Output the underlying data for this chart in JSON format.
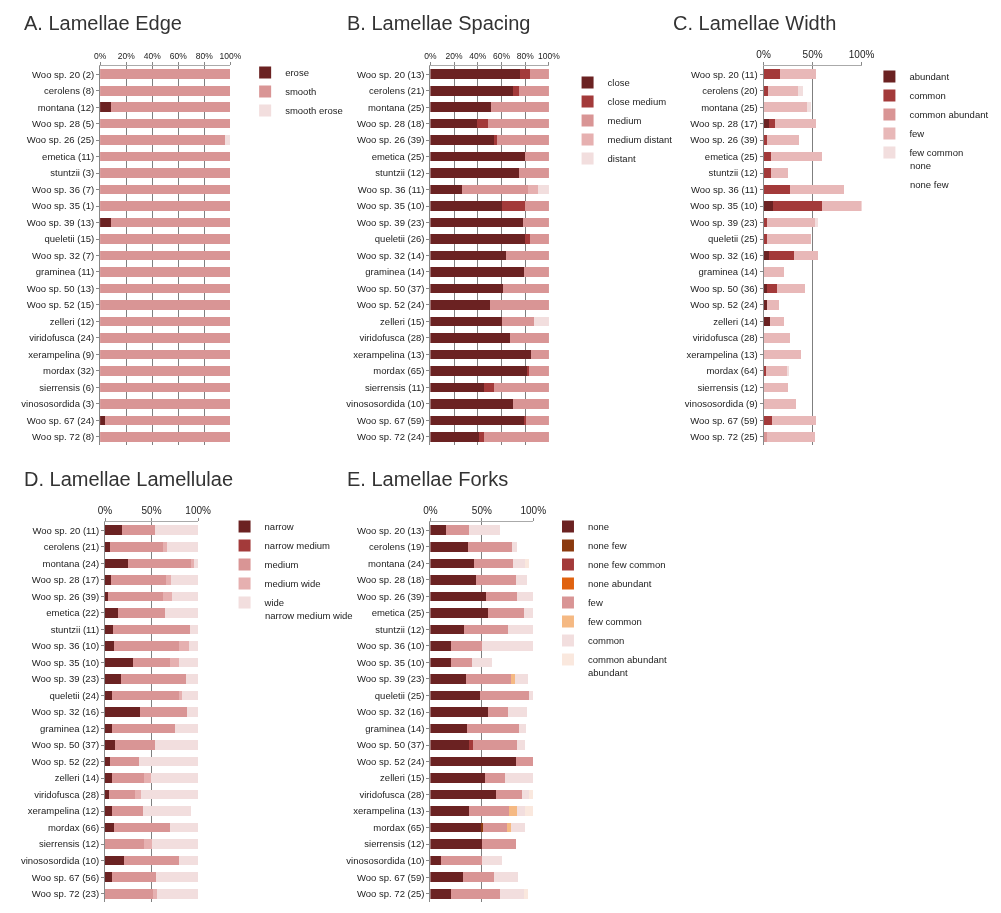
{
  "chart_data": [
    {
      "type": "bar",
      "orientation": "horizontal",
      "stacked": true,
      "title": "A. Lamellae Edge",
      "grid": "x",
      "legend": "right",
      "categories": [
        "Woo sp. 20 (2)",
        "cerolens (8)",
        "montana (12)",
        "Woo sp. 28 (5)",
        "Woo sp. 26 (25)",
        "emetica (11)",
        "stuntzii (3)",
        "Woo sp. 36 (7)",
        "Woo sp. 35 (1)",
        "Woo sp. 39 (13)",
        "queletii (15)",
        "Woo sp. 32 (7)",
        "graminea (11)",
        "Woo sp. 50 (13)",
        "Woo sp. 52 (15)",
        "zelleri (12)",
        "viridofusca (24)",
        "xerampelina (9)",
        "mordax (32)",
        "sierrensis (6)",
        "vinososordida (3)",
        "Woo sp. 67 (24)",
        "Woo sp. 72 (8)"
      ],
      "xlim": [
        0,
        100
      ],
      "xticks": [
        {
          "value": 0,
          "label": "0%"
        },
        {
          "value": 20,
          "label": "20%"
        },
        {
          "value": 40,
          "label": "40%"
        },
        {
          "value": 60,
          "label": "60%"
        },
        {
          "value": 80,
          "label": "80%"
        },
        {
          "value": 100,
          "label": "100%"
        }
      ],
      "series": [
        {
          "name": "erose",
          "color": "#6b2222",
          "values": [
            0,
            0,
            8,
            0,
            0,
            0,
            0,
            0,
            0,
            8,
            0,
            0,
            0,
            0,
            0,
            0,
            0,
            0,
            0,
            0,
            0,
            4,
            0
          ]
        },
        {
          "name": "smooth",
          "color": "#d99595",
          "values": [
            100,
            100,
            92,
            100,
            96,
            100,
            100,
            100,
            100,
            92,
            100,
            100,
            100,
            100,
            100,
            100,
            100,
            100,
            100,
            100,
            100,
            96,
            100
          ]
        },
        {
          "name": "smooth erose",
          "color": "#f2dede",
          "values": [
            0,
            0,
            0,
            0,
            4,
            0,
            0,
            0,
            0,
            0,
            0,
            0,
            0,
            0,
            0,
            0,
            0,
            0,
            0,
            0,
            0,
            0,
            0
          ]
        }
      ]
    },
    {
      "type": "bar",
      "orientation": "horizontal",
      "stacked": true,
      "title": "B. Lamellae Spacing",
      "grid": "x",
      "legend": "right",
      "categories": [
        "Woo sp. 20 (13)",
        "cerolens (21)",
        "montana (25)",
        "Woo sp. 28 (18)",
        "Woo sp. 26 (39)",
        "emetica (25)",
        "stuntzii (12)",
        "Woo sp. 36 (11)",
        "Woo sp. 35 (10)",
        "Woo sp. 39 (23)",
        "queletii (26)",
        "Woo sp. 32 (14)",
        "graminea (14)",
        "Woo sp. 50 (37)",
        "Woo sp. 52 (24)",
        "zelleri (15)",
        "viridofusca (28)",
        "xerampelina (13)",
        "mordax (65)",
        "sierrensis (11)",
        "vinososordida (10)",
        "Woo sp. 67 (59)",
        "Woo sp. 72 (24)"
      ],
      "xlim": [
        0,
        100
      ],
      "xticks": [
        {
          "value": 0,
          "label": "0%"
        },
        {
          "value": 20,
          "label": "20%"
        },
        {
          "value": 40,
          "label": "40%"
        },
        {
          "value": 60,
          "label": "60%"
        },
        {
          "value": 80,
          "label": "80%"
        },
        {
          "value": 100,
          "label": "100%"
        }
      ],
      "series": [
        {
          "name": "close",
          "color": "#6b2222",
          "values": [
            76,
            70,
            51,
            39,
            54,
            80,
            75,
            27,
            60,
            78,
            80,
            64,
            79,
            61,
            50,
            60,
            67,
            85,
            82,
            45,
            70,
            79,
            41
          ]
        },
        {
          "name": "close medium",
          "color": "#a33a3a",
          "values": [
            8,
            5,
            0,
            10,
            2,
            0,
            0,
            0,
            20,
            0,
            4,
            0,
            0,
            0,
            0,
            0,
            0,
            0,
            1,
            9,
            0,
            2,
            4
          ]
        },
        {
          "name": "medium",
          "color": "#d99595",
          "values": [
            16,
            25,
            49,
            51,
            44,
            20,
            25,
            55,
            20,
            22,
            16,
            36,
            21,
            39,
            50,
            27,
            33,
            15,
            17,
            46,
            30,
            19,
            55
          ]
        },
        {
          "name": "medium distant",
          "color": "#e6b0b0",
          "values": [
            0,
            0,
            0,
            0,
            0,
            0,
            0,
            9,
            0,
            0,
            0,
            0,
            0,
            0,
            0,
            0,
            0,
            0,
            0,
            0,
            0,
            0,
            0
          ]
        },
        {
          "name": "distant",
          "color": "#f2dede",
          "values": [
            0,
            0,
            0,
            0,
            0,
            0,
            0,
            9,
            0,
            0,
            0,
            0,
            0,
            0,
            0,
            13,
            0,
            0,
            0,
            0,
            0,
            0,
            0
          ]
        }
      ]
    },
    {
      "type": "bar",
      "orientation": "horizontal",
      "stacked": true,
      "title": "C. Lamellae Width",
      "grid": "x",
      "legend": "right",
      "categories": [
        "Woo sp. 20 (11)",
        "cerolens (20)",
        "montana (25)",
        "Woo sp. 28 (17)",
        "Woo sp. 26 (39)",
        "emetica (25)",
        "stuntzii (12)",
        "Woo sp. 36 (11)",
        "Woo sp. 35 (10)",
        "Woo sp. 39 (23)",
        "queletii (25)",
        "Woo sp. 32 (16)",
        "graminea (14)",
        "Woo sp. 50 (36)",
        "Woo sp. 52 (24)",
        "zelleri (14)",
        "viridofusca (28)",
        "xerampelina (13)",
        "mordax (64)",
        "sierrensis (12)",
        "vinososordida (9)",
        "Woo sp. 67 (59)",
        "Woo sp. 72 (25)"
      ],
      "xlim": [
        0,
        100
      ],
      "xticks": [
        {
          "value": 0,
          "label": "0%"
        },
        {
          "value": 50,
          "label": "50%"
        },
        {
          "value": 100,
          "label": "100%"
        }
      ],
      "series": [
        {
          "name": "abundant",
          "color": "#6b2222",
          "values": [
            0,
            0,
            0,
            6,
            0,
            0,
            0,
            0,
            10,
            0,
            0,
            6,
            0,
            3,
            4,
            7,
            0,
            0,
            0,
            0,
            0,
            0,
            0
          ]
        },
        {
          "name": "common",
          "color": "#a33a3a",
          "values": [
            17,
            5,
            0,
            6,
            3,
            8,
            8,
            27,
            50,
            4,
            4,
            25,
            0,
            11,
            0,
            0,
            0,
            0,
            2,
            0,
            0,
            9,
            0
          ]
        },
        {
          "name": "common abundant",
          "color": "#d99595",
          "values": [
            0,
            0,
            0,
            0,
            0,
            0,
            0,
            0,
            0,
            0,
            0,
            0,
            0,
            0,
            0,
            0,
            0,
            0,
            0,
            0,
            0,
            0,
            4
          ]
        },
        {
          "name": "few",
          "color": "#e8b8b8",
          "values": [
            37,
            30,
            44,
            41,
            33,
            52,
            17,
            55,
            40,
            48,
            44,
            25,
            21,
            28,
            12,
            14,
            27,
            38,
            22,
            25,
            33,
            44,
            48
          ]
        },
        {
          "name": "few common",
          "color": "#f2dede",
          "values": [
            0,
            5,
            4,
            0,
            0,
            0,
            0,
            0,
            0,
            4,
            0,
            0,
            0,
            0,
            0,
            0,
            0,
            0,
            2,
            0,
            0,
            0,
            0
          ]
        }
      ],
      "annotations": [
        "none",
        "none few"
      ]
    },
    {
      "type": "bar",
      "orientation": "horizontal",
      "stacked": true,
      "title": "D. Lamellae Lamellulae",
      "grid": "x",
      "legend": "right",
      "categories": [
        "Woo sp. 20 (11)",
        "cerolens (21)",
        "montana (24)",
        "Woo sp. 28 (17)",
        "Woo sp. 26 (39)",
        "emetica (22)",
        "stuntzii (11)",
        "Woo sp. 36 (10)",
        "Woo sp. 35 (10)",
        "Woo sp. 39 (23)",
        "queletii (24)",
        "Woo sp. 32 (16)",
        "graminea (12)",
        "Woo sp. 50 (37)",
        "Woo sp. 52 (22)",
        "zelleri (14)",
        "viridofusca (28)",
        "xerampelina (12)",
        "mordax (66)",
        "sierrensis (12)",
        "vinososordida (10)",
        "Woo sp. 67 (56)",
        "Woo sp. 72 (23)"
      ],
      "xlim": [
        0,
        100
      ],
      "xticks": [
        {
          "value": 0,
          "label": "0%"
        },
        {
          "value": 50,
          "label": "50%"
        },
        {
          "value": 100,
          "label": "100%"
        }
      ],
      "series": [
        {
          "name": "narrow",
          "color": "#6b2222",
          "values": [
            18,
            5,
            25,
            6,
            3,
            14,
            9,
            10,
            30,
            17,
            8,
            38,
            8,
            11,
            5,
            7,
            4,
            8,
            10,
            0,
            20,
            7,
            0
          ]
        },
        {
          "name": "narrow medium",
          "color": "#a33a3a",
          "values": [
            0,
            0,
            0,
            0,
            0,
            0,
            0,
            0,
            0,
            0,
            0,
            0,
            0,
            0,
            0,
            0,
            0,
            0,
            0,
            0,
            0,
            0,
            0
          ]
        },
        {
          "name": "medium",
          "color": "#d99595",
          "values": [
            36,
            57,
            67,
            59,
            59,
            50,
            82,
            70,
            40,
            70,
            71,
            50,
            67,
            43,
            32,
            35,
            28,
            33,
            60,
            42,
            60,
            48,
            52
          ]
        },
        {
          "name": "medium wide",
          "color": "#e6b0b0",
          "values": [
            0,
            5,
            4,
            6,
            10,
            0,
            0,
            10,
            10,
            0,
            4,
            0,
            0,
            0,
            0,
            7,
            7,
            0,
            0,
            8,
            0,
            0,
            4
          ]
        },
        {
          "name": "wide",
          "color": "#f2dede",
          "values": [
            46,
            33,
            4,
            29,
            28,
            36,
            9,
            10,
            20,
            13,
            17,
            12,
            25,
            46,
            63,
            51,
            61,
            51,
            30,
            50,
            20,
            45,
            44
          ]
        }
      ],
      "annotations": [
        "narrow medium wide"
      ]
    },
    {
      "type": "bar",
      "orientation": "horizontal",
      "stacked": true,
      "title": "E. Lamellae Forks",
      "grid": "x",
      "legend": "right",
      "categories": [
        "Woo sp. 20 (13)",
        "cerolens (19)",
        "montana (24)",
        "Woo sp. 28 (18)",
        "Woo sp. 26 (39)",
        "emetica (25)",
        "stuntzii (12)",
        "Woo sp. 36 (10)",
        "Woo sp. 35 (10)",
        "Woo sp. 39 (23)",
        "queletii (25)",
        "Woo sp. 32 (16)",
        "graminea (14)",
        "Woo sp. 50 (37)",
        "Woo sp. 52 (24)",
        "zelleri (15)",
        "viridofusca (28)",
        "xerampelina (13)",
        "mordax (65)",
        "sierrensis (12)",
        "vinososordida (10)",
        "Woo sp. 67 (59)",
        "Woo sp. 72 (25)"
      ],
      "xlim": [
        0,
        100
      ],
      "xticks": [
        {
          "value": 0,
          "label": "0%"
        },
        {
          "value": 50,
          "label": "50%"
        },
        {
          "value": 100,
          "label": "100%"
        }
      ],
      "series": [
        {
          "name": "none",
          "color": "#6b2222",
          "values": [
            15,
            37,
            42,
            44,
            54,
            56,
            33,
            20,
            20,
            35,
            48,
            56,
            36,
            38,
            83,
            53,
            64,
            38,
            49,
            50,
            10,
            32,
            20
          ]
        },
        {
          "name": "none few",
          "color": "#8b3a0f",
          "values": [
            0,
            0,
            0,
            0,
            0,
            0,
            0,
            0,
            0,
            0,
            0,
            0,
            0,
            0,
            0,
            0,
            0,
            0,
            2,
            0,
            0,
            0,
            0
          ]
        },
        {
          "name": "none few common",
          "color": "#a33a3a",
          "values": [
            0,
            0,
            0,
            0,
            0,
            0,
            0,
            0,
            0,
            0,
            0,
            0,
            0,
            3,
            0,
            0,
            0,
            0,
            0,
            0,
            0,
            0,
            0
          ]
        },
        {
          "name": "none abundant",
          "color": "#e0620f",
          "values": [
            0,
            0,
            0,
            0,
            0,
            0,
            0,
            0,
            0,
            0,
            0,
            0,
            0,
            0,
            0,
            0,
            0,
            0,
            0,
            0,
            0,
            0,
            0
          ]
        },
        {
          "name": "few",
          "color": "#d99595",
          "values": [
            23,
            42,
            38,
            39,
            30,
            35,
            42,
            30,
            20,
            43,
            48,
            19,
            50,
            43,
            17,
            20,
            25,
            38,
            23,
            33,
            40,
            30,
            48
          ]
        },
        {
          "name": "few common",
          "color": "#f5b983",
          "values": [
            0,
            0,
            0,
            0,
            0,
            0,
            0,
            0,
            0,
            4,
            0,
            0,
            0,
            0,
            0,
            0,
            0,
            8,
            4,
            0,
            0,
            0,
            0
          ]
        },
        {
          "name": "common",
          "color": "#f2dede",
          "values": [
            30,
            5,
            12,
            11,
            16,
            9,
            25,
            50,
            20,
            13,
            4,
            19,
            7,
            8,
            0,
            27,
            7,
            8,
            14,
            0,
            20,
            23,
            23
          ]
        },
        {
          "name": "common abundant",
          "color": "#fae8de",
          "values": [
            0,
            0,
            4,
            0,
            0,
            0,
            0,
            0,
            0,
            0,
            0,
            0,
            0,
            0,
            0,
            0,
            4,
            8,
            0,
            0,
            0,
            0,
            4
          ]
        }
      ],
      "annotations": [
        "abundant"
      ]
    }
  ]
}
